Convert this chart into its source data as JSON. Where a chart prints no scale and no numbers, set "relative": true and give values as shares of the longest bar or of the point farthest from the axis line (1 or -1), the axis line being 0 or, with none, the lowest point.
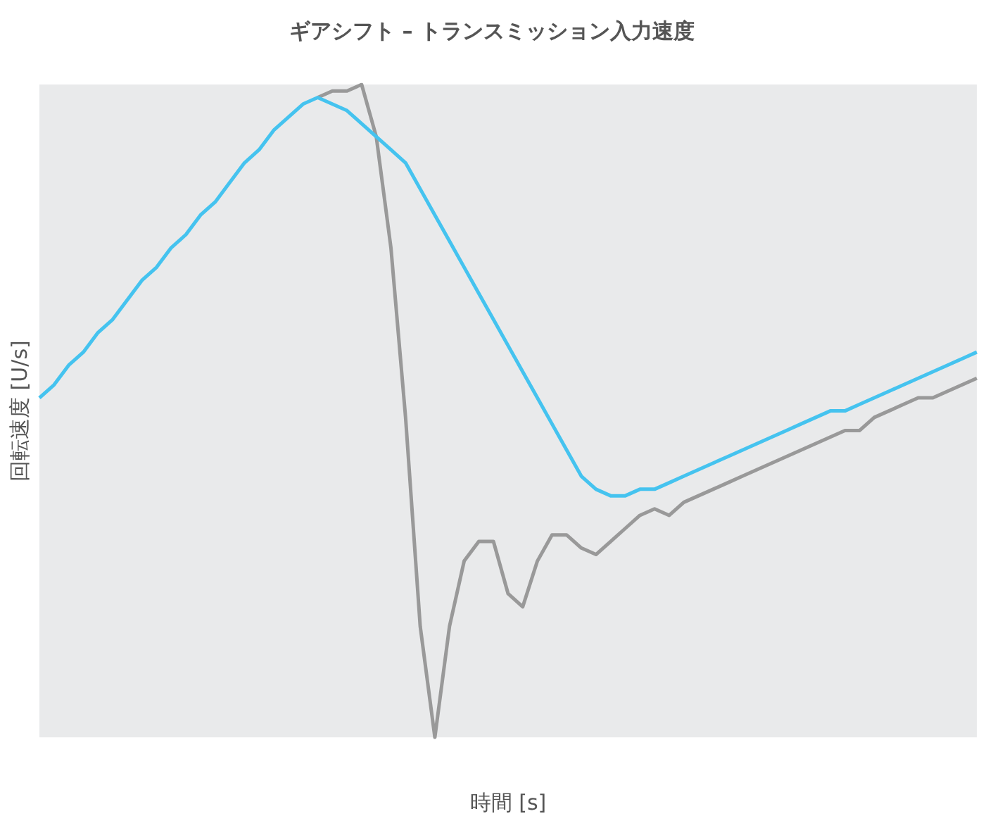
{
  "chart_data": {
    "type": "line",
    "title": "ギアシフト – トランスミッション入力速度",
    "xlabel": "時間 [s]",
    "ylabel": "回転速度 [U/s]",
    "relative": true,
    "grid": false,
    "legend": false,
    "marker": "none",
    "line_style": "solid",
    "categories": [
      null,
      null,
      null,
      null,
      null,
      null,
      null,
      null,
      null,
      null,
      null,
      null,
      null,
      null,
      null,
      null,
      null,
      null,
      null,
      null,
      null,
      null,
      null,
      null,
      null,
      null,
      null,
      null,
      null,
      null,
      null,
      null,
      null,
      null,
      null,
      null,
      null,
      null,
      null,
      null,
      null,
      null,
      null,
      null,
      null,
      null,
      null,
      null,
      null,
      null,
      null,
      null,
      null,
      null,
      null,
      null,
      null,
      null,
      null,
      null,
      null,
      null,
      null,
      null,
      null
    ],
    "series": [
      {
        "color": "#45c3ef",
        "values": [
          0.52,
          0.54,
          0.57,
          0.59,
          0.62,
          0.64,
          0.67,
          0.7,
          0.72,
          0.75,
          0.77,
          0.8,
          0.82,
          0.85,
          0.88,
          0.9,
          0.93,
          0.95,
          0.97,
          0.98,
          0.97,
          0.96,
          0.94,
          0.92,
          0.9,
          0.88,
          0.84,
          0.8,
          0.76,
          0.72,
          0.68,
          0.64,
          0.6,
          0.56,
          0.52,
          0.48,
          0.44,
          0.4,
          0.38,
          0.37,
          0.37,
          0.38,
          0.38,
          0.39,
          0.4,
          0.41,
          0.42,
          0.43,
          0.44,
          0.45,
          0.46,
          0.47,
          0.48,
          0.49,
          0.5,
          0.5,
          0.51,
          0.52,
          0.53,
          0.54,
          0.55,
          0.56,
          0.57,
          0.58,
          0.59
        ]
      },
      {
        "color": "#999999",
        "values": [
          null,
          null,
          null,
          null,
          null,
          null,
          null,
          null,
          null,
          null,
          null,
          null,
          null,
          null,
          null,
          null,
          null,
          null,
          null,
          0.98,
          0.99,
          0.99,
          1,
          0.92,
          0.75,
          0.49,
          0.17,
          0,
          0.17,
          0.27,
          0.3,
          0.3,
          0.22,
          0.2,
          0.27,
          0.31,
          0.31,
          0.29,
          0.28,
          0.3,
          0.32,
          0.34,
          0.35,
          0.34,
          0.36,
          0.37,
          0.38,
          0.39,
          0.4,
          0.41,
          0.42,
          0.43,
          0.44,
          0.45,
          0.46,
          0.47,
          0.47,
          0.49,
          0.5,
          0.51,
          0.52,
          0.52,
          0.53,
          0.54,
          0.55
        ]
      }
    ]
  }
}
